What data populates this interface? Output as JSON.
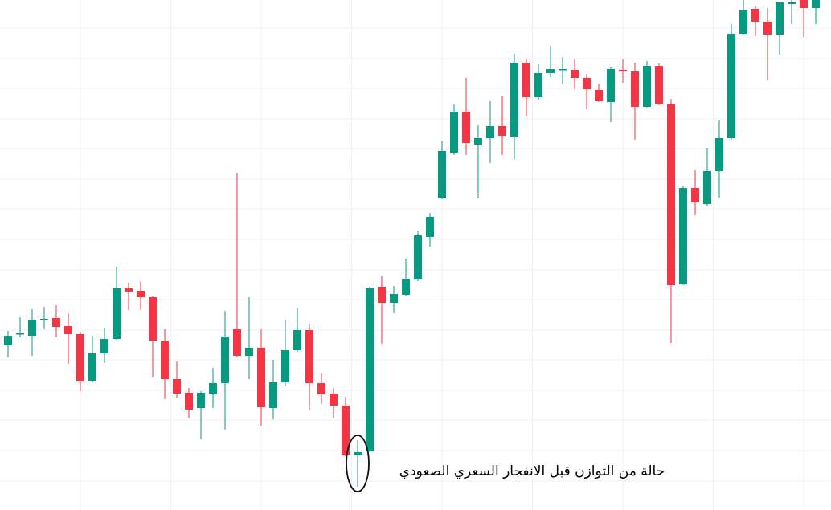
{
  "chart_data": {
    "type": "candlestick",
    "up_color": "#089981",
    "down_color": "#f23645",
    "grid": true,
    "annotation": "حالة من التوازن قبل الانفجار السعري الصعودي",
    "highlight_index": 29,
    "xlim": [
      -0.667,
      68.267
    ],
    "xticks": [
      6,
      13.5,
      21,
      28.5,
      36,
      43.5,
      51,
      58.5,
      66
    ],
    "ylim": [
      0,
      635
    ],
    "yticks": [
      36,
      74,
      112,
      149,
      187,
      224,
      262,
      299,
      337,
      375,
      412,
      450,
      487,
      525,
      562,
      600
    ],
    "open": [
      205,
      219,
      217,
      237,
      239,
      229,
      219,
      161,
      195,
      213,
      276,
      273,
      265,
      211,
      163,
      146,
      127,
      144,
      158,
      225,
      192,
      202,
      127,
      159,
      199,
      224,
      158,
      145,
      130,
      68,
      73,
      278,
      258,
      268,
      287,
      340,
      388,
      445,
      496,
      455,
      463,
      478,
      465,
      557,
      514,
      544,
      548,
      548,
      538,
      523,
      508,
      548,
      546,
      502,
      553,
      505,
      281,
      401,
      381,
      422,
      463,
      593,
      624,
      608,
      592,
      630,
      635,
      625
    ],
    "high": [
      223,
      240,
      250,
      253,
      255,
      245,
      222,
      217,
      227,
      303,
      283,
      285,
      267,
      225,
      185,
      152,
      148,
      177,
      248,
      419,
      265,
      225,
      187,
      237,
      251,
      231,
      170,
      152,
      141,
      87,
      278,
      291,
      279,
      313,
      347,
      370,
      459,
      505,
      538,
      479,
      509,
      515,
      568,
      561,
      555,
      578,
      564,
      561,
      543,
      531,
      551,
      561,
      557,
      559,
      556,
      512,
      403,
      423,
      451,
      485,
      605,
      635,
      628,
      625,
      633,
      635,
      635,
      635
    ],
    "low": [
      190,
      215,
      192,
      225,
      215,
      182,
      148,
      159,
      183,
      212,
      249,
      249,
      165,
      138,
      139,
      115,
      88,
      127,
      100,
      191,
      163,
      105,
      113,
      154,
      197,
      125,
      132,
      115,
      67,
      29,
      72,
      207,
      245,
      267,
      285,
      328,
      387,
      442,
      442,
      388,
      432,
      442,
      437,
      490,
      511,
      539,
      530,
      524,
      499,
      508,
      483,
      532,
      461,
      501,
      504,
      208,
      280,
      367,
      379,
      389,
      461,
      592,
      590,
      535,
      567,
      605,
      589,
      605
    ],
    "close": [
      217,
      220,
      237,
      238,
      228,
      219,
      160,
      195,
      213,
      276,
      272,
      265,
      211,
      163,
      145,
      125,
      146,
      158,
      216,
      192,
      202,
      128,
      159,
      199,
      224,
      158,
      144,
      130,
      68,
      72,
      276,
      258,
      269,
      287,
      342,
      365,
      447,
      496,
      457,
      463,
      478,
      466,
      557,
      514,
      544,
      549,
      549,
      538,
      524,
      509,
      549,
      546,
      502,
      553,
      505,
      280,
      401,
      383,
      422,
      463,
      593,
      622,
      608,
      592,
      632,
      632,
      625,
      635
    ]
  }
}
